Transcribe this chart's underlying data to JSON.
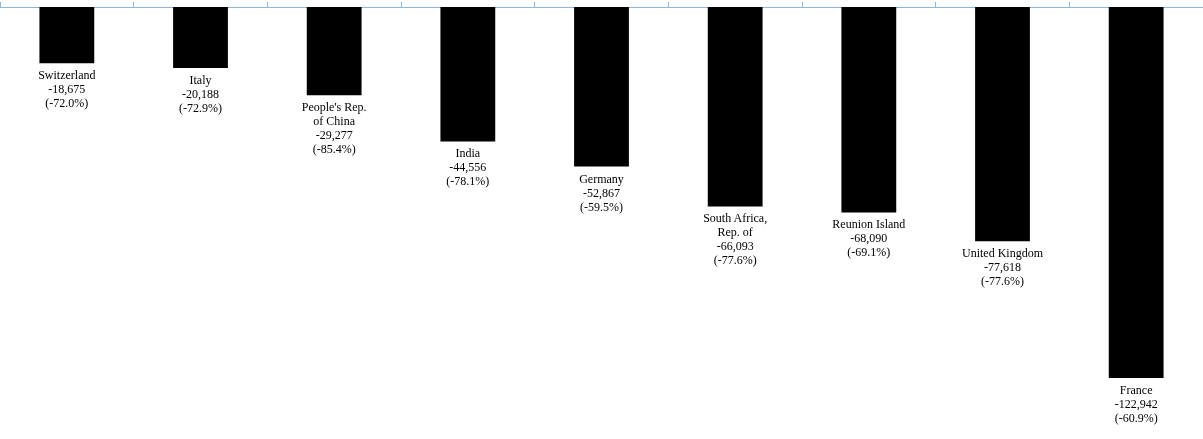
{
  "chart_data": {
    "type": "bar",
    "categories": [
      "Switzerland",
      "Italy",
      "People's Rep.\nof China",
      "India",
      "Germany",
      "South Africa,\nRep. of",
      "Reunion Island",
      "United Kingdom",
      "France"
    ],
    "values": [
      -18675,
      -20188,
      -29277,
      -44556,
      -52867,
      -66093,
      -68090,
      -77618,
      -122942
    ],
    "value_labels": [
      "-18,675\n(-72.0%)",
      "-20,188\n(-72.9%)",
      "-29,277\n(-85.4%)",
      "-44,556\n(-78.1%)",
      "-52,867\n(-59.5%)",
      "-66,093\n(-77.6%)",
      "-68,090\n(-69.1%)",
      "-77,618\n(-77.6%)",
      "-122,942\n(-60.9%)"
    ],
    "color": "#000000",
    "tick_labels": false
  }
}
